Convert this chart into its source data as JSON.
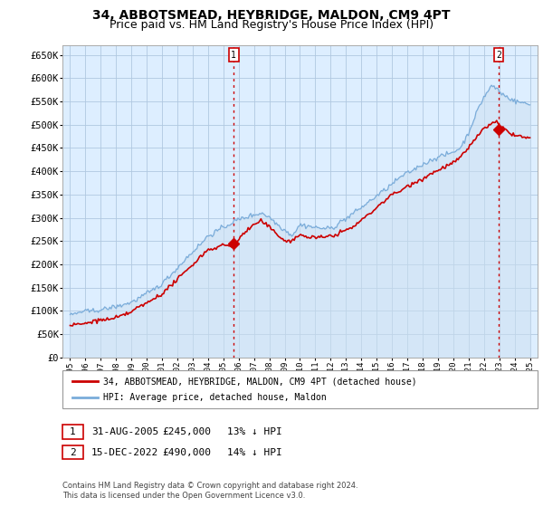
{
  "title": "34, ABBOTSMEAD, HEYBRIDGE, MALDON, CM9 4PT",
  "subtitle": "Price paid vs. HM Land Registry's House Price Index (HPI)",
  "ylabel_ticks": [
    "£0",
    "£50K",
    "£100K",
    "£150K",
    "£200K",
    "£250K",
    "£300K",
    "£350K",
    "£400K",
    "£450K",
    "£500K",
    "£550K",
    "£600K",
    "£650K"
  ],
  "ytick_values": [
    0,
    50000,
    100000,
    150000,
    200000,
    250000,
    300000,
    350000,
    400000,
    450000,
    500000,
    550000,
    600000,
    650000
  ],
  "ylim": [
    0,
    670000
  ],
  "sale1_x": 2005.67,
  "sale1_y": 245000,
  "sale2_x": 2022.96,
  "sale2_y": 490000,
  "legend_house": "34, ABBOTSMEAD, HEYBRIDGE, MALDON, CM9 4PT (detached house)",
  "legend_hpi": "HPI: Average price, detached house, Maldon",
  "footnote": "Contains HM Land Registry data © Crown copyright and database right 2024.\nThis data is licensed under the Open Government Licence v3.0.",
  "house_color": "#cc0000",
  "hpi_color": "#7aacda",
  "hpi_fill_color": "#cde0f0",
  "background_color": "#ffffff",
  "plot_bg_color": "#ddeeff",
  "grid_color": "#b0c8e0",
  "title_fontsize": 10,
  "subtitle_fontsize": 9,
  "tick_fontsize": 7.5,
  "xlim_start": 1994.5,
  "xlim_end": 2025.5
}
